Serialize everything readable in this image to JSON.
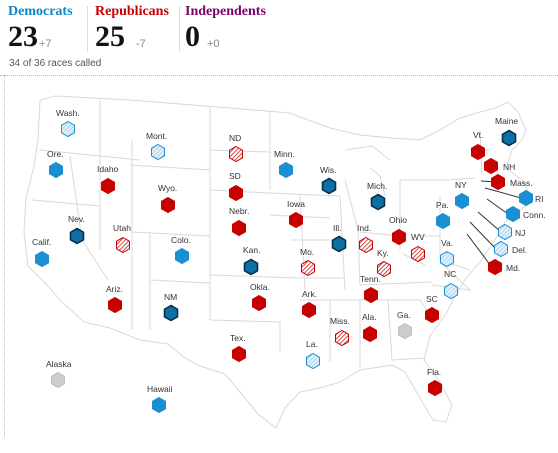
{
  "header": {
    "parties": [
      {
        "name": "Democrats",
        "count": "23",
        "delta": "+7",
        "color": "#0f86c6"
      },
      {
        "name": "Republicans",
        "count": "25",
        "delta": "-7",
        "color": "#c70000"
      },
      {
        "name": "Independents",
        "count": "0",
        "delta": "+0",
        "color": "#7d0068"
      }
    ],
    "summary": "34 of 36 races called"
  },
  "legend_colors": {
    "dem_gain": "#0d6fa6",
    "dem_hold": "#1b8fd2",
    "rep_hold": "#c70000",
    "undecided": "#cccccc"
  },
  "states": [
    {
      "label": "Wash.",
      "status": "no-dem"
    },
    {
      "label": "Mont.",
      "status": "no-dem"
    },
    {
      "label": "ND",
      "status": "no-rep"
    },
    {
      "label": "Minn.",
      "status": "dem"
    },
    {
      "label": "Ore.",
      "status": "dem"
    },
    {
      "label": "Idaho",
      "status": "rep"
    },
    {
      "label": "SD",
      "status": "rep"
    },
    {
      "label": "Wyo.",
      "status": "rep"
    },
    {
      "label": "Wis.",
      "status": "dem-gain"
    },
    {
      "label": "Mich.",
      "status": "dem-gain"
    },
    {
      "label": "Maine",
      "status": "dem-gain"
    },
    {
      "label": "Vt.",
      "status": "rep"
    },
    {
      "label": "NH",
      "status": "rep"
    },
    {
      "label": "Mass.",
      "status": "rep"
    },
    {
      "label": "NY",
      "status": "dem"
    },
    {
      "label": "RI",
      "status": "dem"
    },
    {
      "label": "Conn.",
      "status": "dem"
    },
    {
      "label": "NJ",
      "status": "no-dem"
    },
    {
      "label": "Del.",
      "status": "no-dem"
    },
    {
      "label": "Md.",
      "status": "rep"
    },
    {
      "label": "Pa.",
      "status": "dem"
    },
    {
      "label": "Nev.",
      "status": "dem-gain"
    },
    {
      "label": "Utah",
      "status": "no-rep"
    },
    {
      "label": "Calif.",
      "status": "dem"
    },
    {
      "label": "Nebr.",
      "status": "rep"
    },
    {
      "label": "Iowa",
      "status": "rep"
    },
    {
      "label": "Ill.",
      "status": "dem-gain"
    },
    {
      "label": "Ind.",
      "status": "no-rep"
    },
    {
      "label": "Ohio",
      "status": "rep"
    },
    {
      "label": "WV",
      "status": "no-rep"
    },
    {
      "label": "Va.",
      "status": "no-dem"
    },
    {
      "label": "Colo.",
      "status": "dem"
    },
    {
      "label": "Kan.",
      "status": "dem-gain"
    },
    {
      "label": "Mo.",
      "status": "no-rep"
    },
    {
      "label": "Ky.",
      "status": "no-rep"
    },
    {
      "label": "NC",
      "status": "no-dem"
    },
    {
      "label": "Ariz.",
      "status": "rep"
    },
    {
      "label": "NM",
      "status": "dem-gain"
    },
    {
      "label": "Okla.",
      "status": "rep"
    },
    {
      "label": "Ark.",
      "status": "rep"
    },
    {
      "label": "Tenn.",
      "status": "rep"
    },
    {
      "label": "SC",
      "status": "rep"
    },
    {
      "label": "Miss.",
      "status": "no-rep"
    },
    {
      "label": "Ala.",
      "status": "rep"
    },
    {
      "label": "Ga.",
      "status": "undecided"
    },
    {
      "label": "Tex.",
      "status": "rep"
    },
    {
      "label": "La.",
      "status": "no-dem"
    },
    {
      "label": "Fla.",
      "status": "rep"
    },
    {
      "label": "Alaska",
      "status": "undecided"
    },
    {
      "label": "Hawaii",
      "status": "dem"
    }
  ]
}
